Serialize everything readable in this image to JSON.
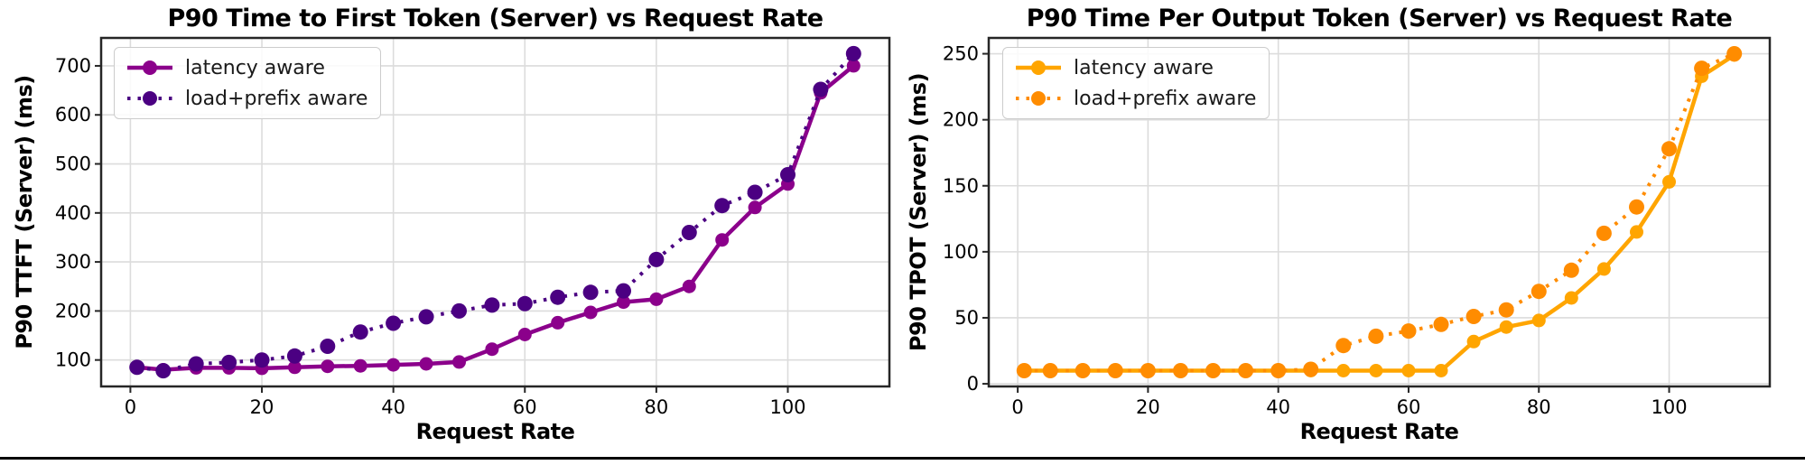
{
  "page": {
    "background": "#ffffff",
    "divider_color": "#000000"
  },
  "style_colors": {
    "grid": "#dcdcdc",
    "spine": "#262626",
    "tick_text": "#000000"
  },
  "chart_data": [
    {
      "type": "line",
      "title": "P90 Time to First Token (Server) vs Request Rate",
      "xlabel": "Request Rate",
      "ylabel": "P90 TTFT (Server) (ms)",
      "x": [
        1,
        5,
        10,
        15,
        20,
        25,
        30,
        35,
        40,
        45,
        50,
        55,
        60,
        65,
        70,
        75,
        80,
        85,
        90,
        95,
        100,
        105,
        110
      ],
      "series": [
        {
          "name": "latency aware",
          "line_style": "solid",
          "color": "#8B008B",
          "values": [
            85,
            80,
            84,
            84,
            83,
            85,
            87,
            88,
            90,
            92,
            96,
            122,
            152,
            176,
            197,
            218,
            224,
            250,
            345,
            411,
            459,
            645,
            700
          ]
        },
        {
          "name": "load+prefix aware",
          "line_style": "dotted",
          "color": "#4B0082",
          "values": [
            85,
            78,
            92,
            95,
            100,
            108,
            128,
            157,
            175,
            188,
            200,
            212,
            215,
            228,
            238,
            241,
            305,
            360,
            415,
            442,
            478,
            652,
            725
          ]
        }
      ],
      "xticks": [
        0,
        20,
        40,
        60,
        80,
        100
      ],
      "yticks": [
        100,
        200,
        300,
        400,
        500,
        600,
        700
      ],
      "xlim": [
        -4.45,
        115.45
      ],
      "ylim": [
        46,
        757
      ],
      "grid": true,
      "legend_position": "upper left"
    },
    {
      "type": "line",
      "title": "P90 Time Per Output Token (Server) vs Request Rate",
      "xlabel": "Request Rate",
      "ylabel": "P90 TPOT (Server) (ms)",
      "x": [
        1,
        5,
        10,
        15,
        20,
        25,
        30,
        35,
        40,
        45,
        50,
        55,
        60,
        65,
        70,
        75,
        80,
        85,
        90,
        95,
        100,
        105,
        110
      ],
      "series": [
        {
          "name": "latency aware",
          "line_style": "solid",
          "color": "#FFA500",
          "values": [
            10,
            10,
            10,
            10,
            10,
            10,
            10,
            10,
            10,
            10,
            10,
            10,
            10,
            10,
            32,
            43,
            48,
            65,
            87,
            115,
            153,
            233,
            249
          ]
        },
        {
          "name": "load+prefix aware",
          "line_style": "dotted",
          "color": "#FF8C00",
          "values": [
            10,
            10,
            10,
            10,
            10,
            10,
            10,
            10,
            10,
            11,
            29,
            36,
            40,
            45,
            51,
            56,
            70,
            86,
            114,
            134,
            178,
            239,
            250
          ]
        }
      ],
      "xticks": [
        0,
        20,
        40,
        60,
        80,
        100
      ],
      "yticks": [
        0,
        50,
        100,
        150,
        200,
        250
      ],
      "xlim": [
        -4.45,
        115.45
      ],
      "ylim": [
        -2,
        262
      ],
      "grid": true,
      "legend_position": "upper left"
    }
  ]
}
